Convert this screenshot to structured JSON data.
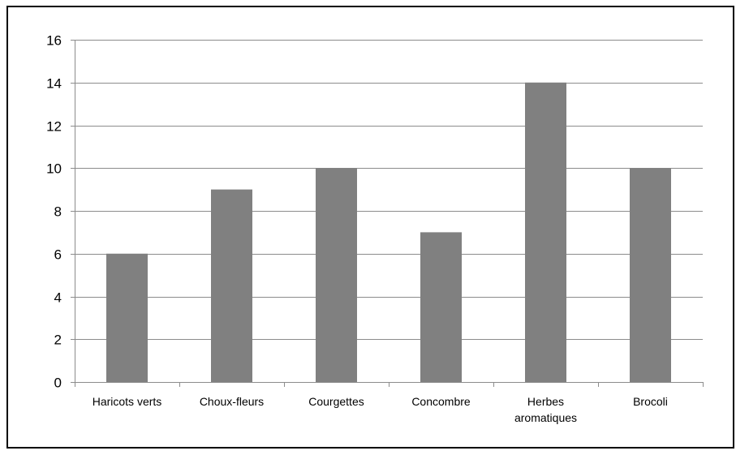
{
  "chart_data": {
    "type": "bar",
    "categories": [
      "Haricots verts",
      "Choux-fleurs",
      "Courgettes",
      "Concombre",
      "Herbes aromatiques",
      "Brocoli"
    ],
    "category_lines": [
      [
        "Haricots verts"
      ],
      [
        "Choux-fleurs"
      ],
      [
        "Courgettes"
      ],
      [
        "Concombre"
      ],
      [
        "Herbes",
        "aromatiques"
      ],
      [
        "Brocoli"
      ]
    ],
    "values": [
      6,
      9,
      10,
      7,
      14,
      10
    ],
    "title": "",
    "xlabel": "",
    "ylabel": "",
    "ylim": [
      0,
      16
    ],
    "yticks": [
      "0",
      "2",
      "4",
      "6",
      "8",
      "10",
      "12",
      "14",
      "16"
    ],
    "grid": true,
    "legend": "none",
    "colors": {
      "bar": "#808080",
      "grid": "#8c8c8c",
      "axis": "#8c8c8c",
      "text": "#000000"
    }
  }
}
